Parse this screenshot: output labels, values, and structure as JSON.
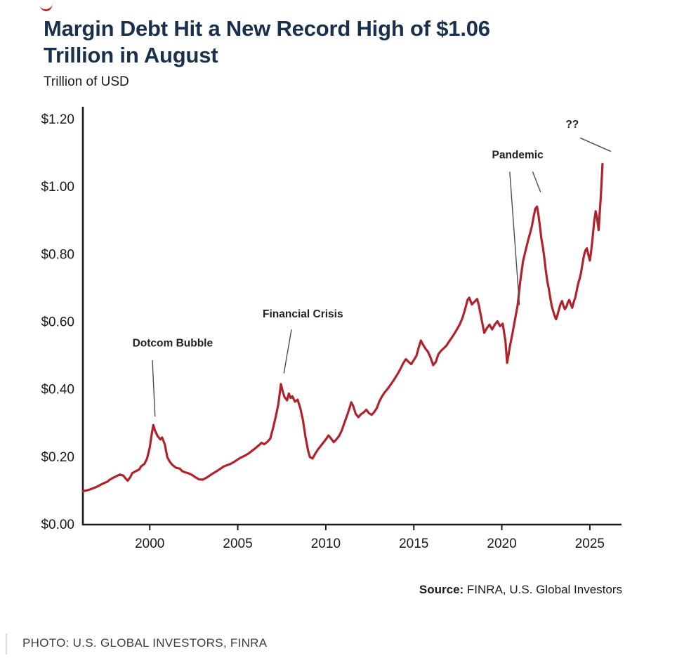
{
  "header": {
    "title_line1": "Margin Debt Hit a New Record High of $1.06",
    "title_line2": "Trillion in August",
    "subtitle": "Trillion of USD"
  },
  "source": {
    "label": "Source:",
    "text": " FINRA, U.S. Global Investors"
  },
  "photo_credit": "PHOTO: U.S. GLOBAL INVESTORS, FINRA",
  "colors": {
    "title": "#182f4e",
    "line": "#b2222b",
    "axis": "#1a1a1a",
    "annotation_text": "#222222",
    "annotation_line": "#4d4d4d"
  },
  "chart_data": {
    "type": "line",
    "title": "Margin Debt Hit a New Record High of $1.06 Trillion in August",
    "ylabel": "Trillion of USD",
    "xlim": [
      1996.2,
      2026.8
    ],
    "ylim": [
      0,
      1.2
    ],
    "grid": false,
    "x_ticks": [
      2000,
      2005,
      2010,
      2015,
      2020,
      2025
    ],
    "x_tick_labels": [
      "2000",
      "2005",
      "2010",
      "2015",
      "2020",
      "2025"
    ],
    "y_ticks": [
      0,
      0.2,
      0.4,
      0.6,
      0.8,
      1.0,
      1.2
    ],
    "y_tick_labels": [
      "$0.00",
      "$0.20",
      "$0.40",
      "$0.60",
      "$0.80",
      "$1.00",
      "$1.20"
    ],
    "series": [
      {
        "name": "Margin Debt (Trillion USD)",
        "color": "#b2222b",
        "points": [
          [
            1996.2,
            0.099
          ],
          [
            1996.4,
            0.101
          ],
          [
            1996.6,
            0.104
          ],
          [
            1996.8,
            0.108
          ],
          [
            1997.0,
            0.112
          ],
          [
            1997.2,
            0.118
          ],
          [
            1997.4,
            0.123
          ],
          [
            1997.6,
            0.127
          ],
          [
            1997.7,
            0.132
          ],
          [
            1997.9,
            0.138
          ],
          [
            1998.1,
            0.143
          ],
          [
            1998.3,
            0.148
          ],
          [
            1998.5,
            0.145
          ],
          [
            1998.6,
            0.138
          ],
          [
            1998.75,
            0.13
          ],
          [
            1998.9,
            0.141
          ],
          [
            1999.0,
            0.152
          ],
          [
            1999.2,
            0.158
          ],
          [
            1999.4,
            0.163
          ],
          [
            1999.5,
            0.172
          ],
          [
            1999.7,
            0.18
          ],
          [
            1999.85,
            0.196
          ],
          [
            2000.0,
            0.228
          ],
          [
            2000.1,
            0.265
          ],
          [
            2000.2,
            0.295
          ],
          [
            2000.3,
            0.278
          ],
          [
            2000.45,
            0.262
          ],
          [
            2000.6,
            0.252
          ],
          [
            2000.7,
            0.258
          ],
          [
            2000.85,
            0.238
          ],
          [
            2001.0,
            0.199
          ],
          [
            2001.15,
            0.185
          ],
          [
            2001.3,
            0.176
          ],
          [
            2001.5,
            0.168
          ],
          [
            2001.7,
            0.166
          ],
          [
            2001.85,
            0.158
          ],
          [
            2002.0,
            0.155
          ],
          [
            2002.2,
            0.152
          ],
          [
            2002.4,
            0.147
          ],
          [
            2002.6,
            0.14
          ],
          [
            2002.8,
            0.134
          ],
          [
            2003.0,
            0.133
          ],
          [
            2003.2,
            0.138
          ],
          [
            2003.4,
            0.145
          ],
          [
            2003.6,
            0.152
          ],
          [
            2003.8,
            0.158
          ],
          [
            2004.0,
            0.165
          ],
          [
            2004.2,
            0.172
          ],
          [
            2004.4,
            0.176
          ],
          [
            2004.6,
            0.18
          ],
          [
            2004.8,
            0.186
          ],
          [
            2005.0,
            0.193
          ],
          [
            2005.2,
            0.199
          ],
          [
            2005.4,
            0.204
          ],
          [
            2005.6,
            0.21
          ],
          [
            2005.8,
            0.218
          ],
          [
            2006.0,
            0.226
          ],
          [
            2006.2,
            0.235
          ],
          [
            2006.35,
            0.242
          ],
          [
            2006.5,
            0.238
          ],
          [
            2006.7,
            0.246
          ],
          [
            2006.85,
            0.255
          ],
          [
            2007.0,
            0.285
          ],
          [
            2007.15,
            0.318
          ],
          [
            2007.3,
            0.355
          ],
          [
            2007.45,
            0.416
          ],
          [
            2007.55,
            0.395
          ],
          [
            2007.65,
            0.378
          ],
          [
            2007.8,
            0.368
          ],
          [
            2007.9,
            0.388
          ],
          [
            2008.0,
            0.375
          ],
          [
            2008.1,
            0.38
          ],
          [
            2008.25,
            0.364
          ],
          [
            2008.4,
            0.37
          ],
          [
            2008.55,
            0.345
          ],
          [
            2008.7,
            0.31
          ],
          [
            2008.85,
            0.258
          ],
          [
            2009.0,
            0.218
          ],
          [
            2009.1,
            0.2
          ],
          [
            2009.25,
            0.196
          ],
          [
            2009.4,
            0.21
          ],
          [
            2009.55,
            0.222
          ],
          [
            2009.7,
            0.232
          ],
          [
            2009.85,
            0.242
          ],
          [
            2010.0,
            0.252
          ],
          [
            2010.15,
            0.264
          ],
          [
            2010.3,
            0.255
          ],
          [
            2010.45,
            0.244
          ],
          [
            2010.6,
            0.252
          ],
          [
            2010.75,
            0.262
          ],
          [
            2010.9,
            0.278
          ],
          [
            2011.05,
            0.3
          ],
          [
            2011.2,
            0.322
          ],
          [
            2011.35,
            0.345
          ],
          [
            2011.45,
            0.362
          ],
          [
            2011.55,
            0.352
          ],
          [
            2011.7,
            0.328
          ],
          [
            2011.85,
            0.318
          ],
          [
            2012.0,
            0.327
          ],
          [
            2012.15,
            0.332
          ],
          [
            2012.3,
            0.34
          ],
          [
            2012.45,
            0.33
          ],
          [
            2012.6,
            0.325
          ],
          [
            2012.75,
            0.333
          ],
          [
            2012.9,
            0.345
          ],
          [
            2013.05,
            0.366
          ],
          [
            2013.2,
            0.38
          ],
          [
            2013.35,
            0.392
          ],
          [
            2013.5,
            0.401
          ],
          [
            2013.65,
            0.412
          ],
          [
            2013.8,
            0.423
          ],
          [
            2013.95,
            0.435
          ],
          [
            2014.1,
            0.448
          ],
          [
            2014.25,
            0.462
          ],
          [
            2014.4,
            0.478
          ],
          [
            2014.55,
            0.49
          ],
          [
            2014.7,
            0.482
          ],
          [
            2014.85,
            0.475
          ],
          [
            2015.0,
            0.487
          ],
          [
            2015.15,
            0.5
          ],
          [
            2015.3,
            0.528
          ],
          [
            2015.4,
            0.545
          ],
          [
            2015.5,
            0.535
          ],
          [
            2015.65,
            0.522
          ],
          [
            2015.8,
            0.512
          ],
          [
            2015.95,
            0.495
          ],
          [
            2016.1,
            0.472
          ],
          [
            2016.25,
            0.482
          ],
          [
            2016.4,
            0.505
          ],
          [
            2016.55,
            0.515
          ],
          [
            2016.7,
            0.522
          ],
          [
            2016.85,
            0.53
          ],
          [
            2017.0,
            0.542
          ],
          [
            2017.15,
            0.553
          ],
          [
            2017.3,
            0.565
          ],
          [
            2017.45,
            0.578
          ],
          [
            2017.6,
            0.592
          ],
          [
            2017.75,
            0.61
          ],
          [
            2017.9,
            0.635
          ],
          [
            2018.05,
            0.665
          ],
          [
            2018.15,
            0.672
          ],
          [
            2018.3,
            0.652
          ],
          [
            2018.45,
            0.66
          ],
          [
            2018.6,
            0.668
          ],
          [
            2018.7,
            0.648
          ],
          [
            2018.85,
            0.608
          ],
          [
            2019.0,
            0.568
          ],
          [
            2019.15,
            0.582
          ],
          [
            2019.3,
            0.592
          ],
          [
            2019.45,
            0.578
          ],
          [
            2019.6,
            0.592
          ],
          [
            2019.75,
            0.602
          ],
          [
            2019.9,
            0.588
          ],
          [
            2020.05,
            0.595
          ],
          [
            2020.2,
            0.545
          ],
          [
            2020.3,
            0.479
          ],
          [
            2020.45,
            0.525
          ],
          [
            2020.6,
            0.565
          ],
          [
            2020.75,
            0.608
          ],
          [
            2020.9,
            0.65
          ],
          [
            2021.05,
            0.722
          ],
          [
            2021.2,
            0.778
          ],
          [
            2021.35,
            0.812
          ],
          [
            2021.5,
            0.844
          ],
          [
            2021.6,
            0.862
          ],
          [
            2021.7,
            0.882
          ],
          [
            2021.8,
            0.91
          ],
          [
            2021.9,
            0.935
          ],
          [
            2022.0,
            0.942
          ],
          [
            2022.08,
            0.918
          ],
          [
            2022.17,
            0.882
          ],
          [
            2022.25,
            0.845
          ],
          [
            2022.33,
            0.822
          ],
          [
            2022.42,
            0.788
          ],
          [
            2022.5,
            0.752
          ],
          [
            2022.58,
            0.722
          ],
          [
            2022.67,
            0.698
          ],
          [
            2022.75,
            0.672
          ],
          [
            2022.83,
            0.648
          ],
          [
            2022.92,
            0.632
          ],
          [
            2023.0,
            0.618
          ],
          [
            2023.08,
            0.608
          ],
          [
            2023.17,
            0.622
          ],
          [
            2023.25,
            0.638
          ],
          [
            2023.33,
            0.652
          ],
          [
            2023.42,
            0.662
          ],
          [
            2023.5,
            0.648
          ],
          [
            2023.58,
            0.638
          ],
          [
            2023.67,
            0.645
          ],
          [
            2023.75,
            0.658
          ],
          [
            2023.83,
            0.665
          ],
          [
            2023.92,
            0.652
          ],
          [
            2024.0,
            0.642
          ],
          [
            2024.08,
            0.658
          ],
          [
            2024.17,
            0.672
          ],
          [
            2024.25,
            0.692
          ],
          [
            2024.33,
            0.712
          ],
          [
            2024.42,
            0.728
          ],
          [
            2024.5,
            0.745
          ],
          [
            2024.58,
            0.772
          ],
          [
            2024.67,
            0.798
          ],
          [
            2024.75,
            0.812
          ],
          [
            2024.83,
            0.818
          ],
          [
            2024.92,
            0.798
          ],
          [
            2025.0,
            0.782
          ],
          [
            2025.08,
            0.812
          ],
          [
            2025.17,
            0.855
          ],
          [
            2025.25,
            0.898
          ],
          [
            2025.33,
            0.928
          ],
          [
            2025.42,
            0.905
          ],
          [
            2025.5,
            0.872
          ],
          [
            2025.55,
            0.915
          ],
          [
            2025.62,
            0.968
          ],
          [
            2025.67,
            1.018
          ],
          [
            2025.72,
            1.068
          ]
        ]
      }
    ],
    "annotations": [
      {
        "label": "Dotcom Bubble",
        "text_x": 2001.3,
        "text_y": 0.527,
        "lines": [
          [
            2000.15,
            0.487,
            2000.3,
            0.32
          ]
        ]
      },
      {
        "label": "Financial Crisis",
        "text_x": 2008.7,
        "text_y": 0.613,
        "lines": [
          [
            2008.05,
            0.578,
            2007.62,
            0.448
          ]
        ]
      },
      {
        "label": "Pandemic",
        "text_x": 2020.9,
        "text_y": 1.085,
        "lines": [
          [
            2020.45,
            1.045,
            2021.0,
            0.65
          ],
          [
            2021.75,
            1.045,
            2022.2,
            0.985
          ]
        ]
      },
      {
        "label": "??",
        "text_x": 2024.0,
        "text_y": 1.175,
        "lines": [
          [
            2024.45,
            1.145,
            2026.2,
            1.105
          ]
        ]
      }
    ]
  }
}
